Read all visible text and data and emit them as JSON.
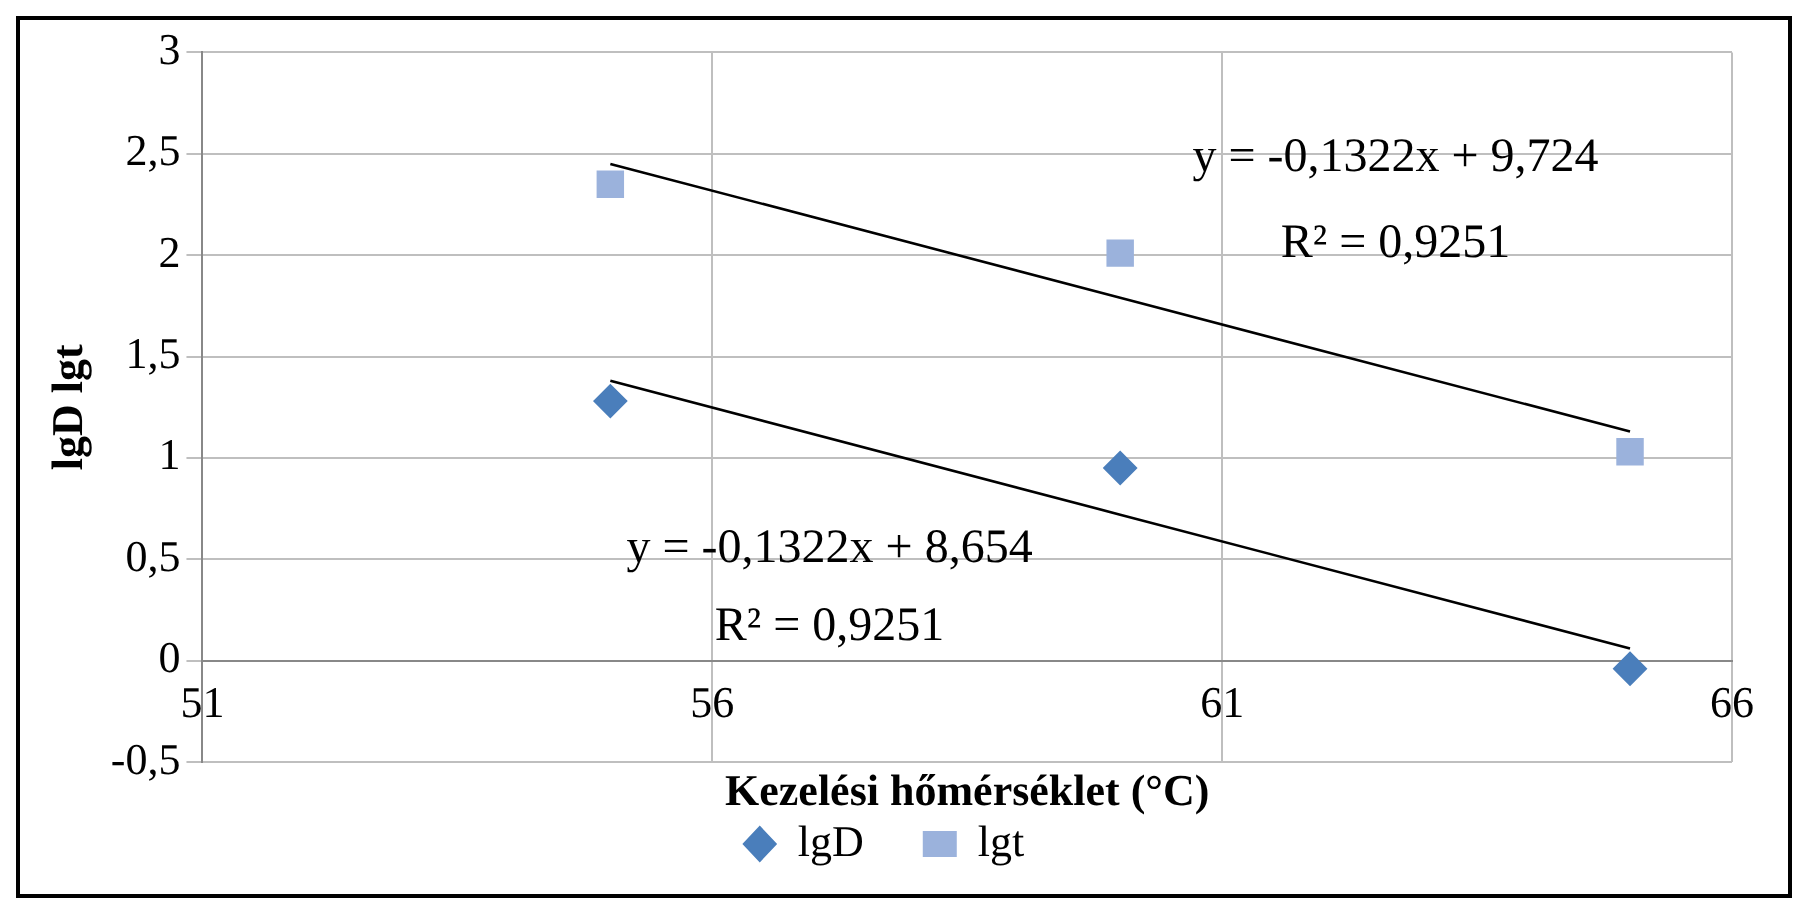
{
  "chart_data": {
    "type": "scatter",
    "xlabel": "Kezelési hőmérséklet (°C)",
    "ylabel": "lgD lgt",
    "x": [
      55,
      60,
      65
    ],
    "series": [
      {
        "name": "lgD",
        "color": "#4a7ebb",
        "marker": "diamond",
        "values": [
          1.28,
          0.95,
          -0.04
        ]
      },
      {
        "name": "lgt",
        "color": "#9bb2dc",
        "marker": "square",
        "values": [
          2.35,
          2.01,
          1.03
        ]
      },
      {
        "type": "line",
        "color": "#000000",
        "marker": "none",
        "values": [
          1.38,
          0.72,
          0.06
        ]
      },
      {
        "type": "line",
        "color": "#000000",
        "marker": "none",
        "values": [
          2.45,
          1.79,
          1.13
        ]
      }
    ],
    "xlim": [
      51,
      66
    ],
    "xticks": [
      51,
      56,
      61,
      66
    ],
    "ylim": [
      -0.5,
      3
    ],
    "yticks": [
      {
        "value": -0.5,
        "label": "-0,5"
      },
      0,
      {
        "value": 0.5,
        "label": "0,5"
      },
      1,
      {
        "value": 1.5,
        "label": "1,5"
      },
      2,
      {
        "value": 2.5,
        "label": "2,5"
      },
      3
    ],
    "grid": true,
    "legend": "bottom",
    "annotations": [
      "y = -0,1322x + 9,724",
      "R² = 0,9251",
      "y = -0,1322x + 8,654",
      "R² = 0,9251"
    ]
  }
}
